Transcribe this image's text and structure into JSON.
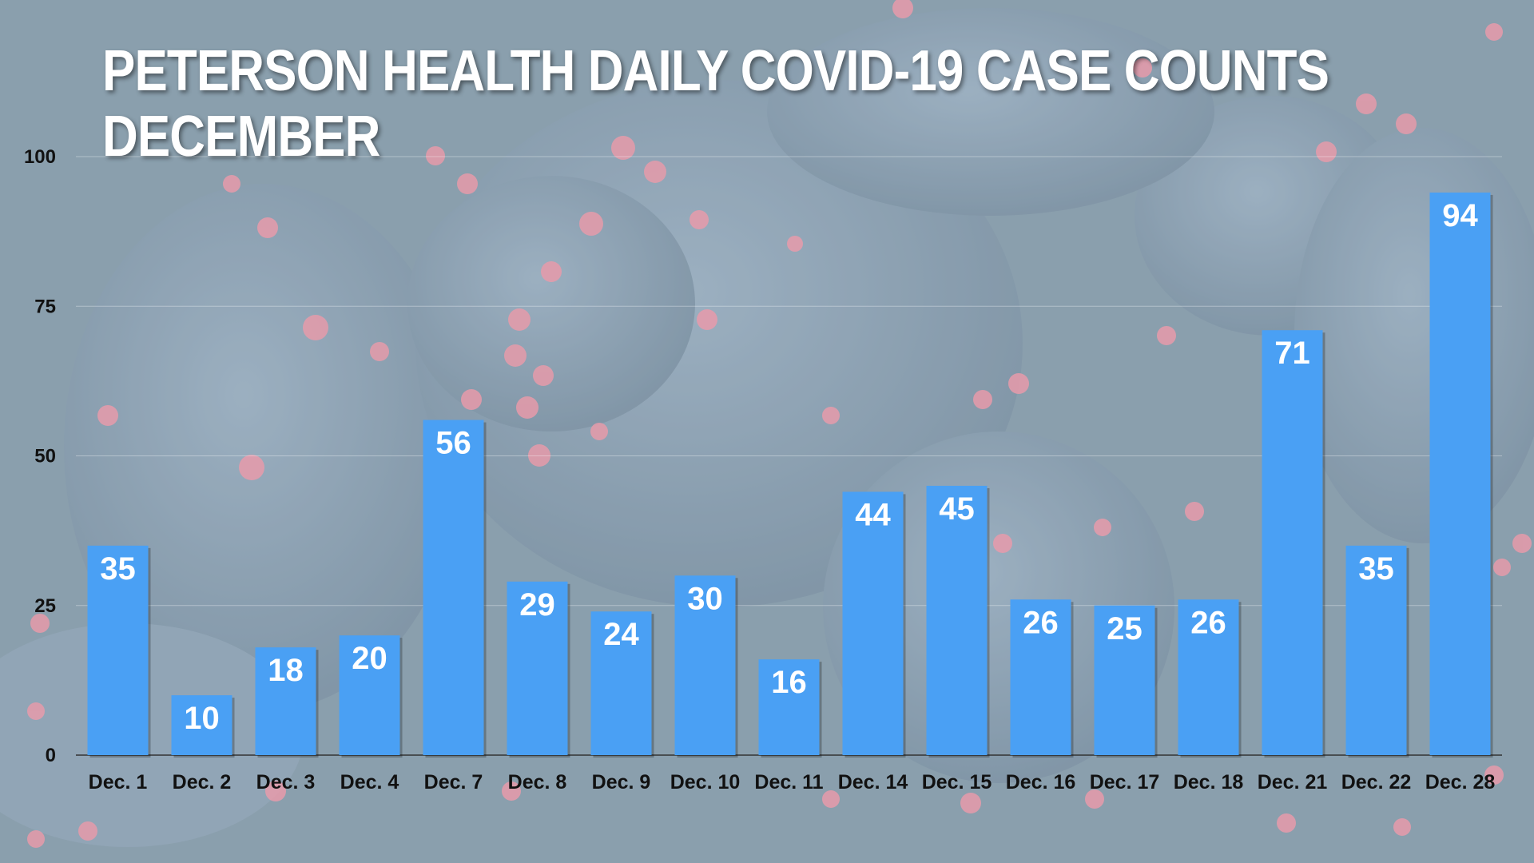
{
  "chart_data": {
    "type": "bar",
    "title": [
      "PETERSON HEALTH DAILY COVID-19 CASE COUNTS",
      "DECEMBER"
    ],
    "categories": [
      "Dec. 1",
      "Dec. 2",
      "Dec. 3",
      "Dec. 4",
      "Dec. 7",
      "Dec. 8",
      "Dec. 9",
      "Dec. 10",
      "Dec. 11",
      "Dec. 14",
      "Dec. 15",
      "Dec. 16",
      "Dec. 17",
      "Dec. 18",
      "Dec. 21",
      "Dec. 22",
      "Dec. 28"
    ],
    "values": [
      35,
      10,
      18,
      20,
      56,
      29,
      24,
      30,
      16,
      44,
      45,
      26,
      25,
      26,
      71,
      35,
      94
    ],
    "ylim": [
      0,
      100
    ],
    "yticks": [
      0,
      25,
      50,
      75,
      100
    ],
    "grid": true,
    "legend": false,
    "data_labels": true,
    "colors": {
      "bar": "#4aa0f4",
      "label": "#ffffff",
      "axis_text": "#111111"
    }
  }
}
